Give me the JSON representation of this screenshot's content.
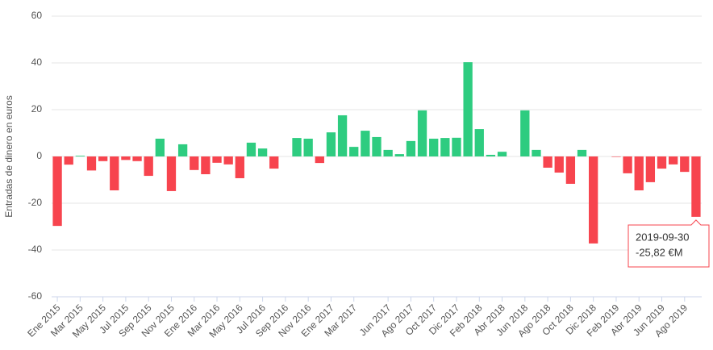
{
  "chart_data": {
    "type": "bar",
    "y_axis_label": "Entradas de dinero en euros",
    "categories": [
      "Ene 2015",
      null,
      "Mar 2015",
      null,
      "May 2015",
      null,
      "Jul 2015",
      null,
      "Sep 2015",
      null,
      "Nov 2015",
      null,
      "Ene 2016",
      null,
      "Mar 2016",
      null,
      "May 2016",
      null,
      "Jul 2016",
      null,
      "Sep 2016",
      null,
      "Nov 2016",
      null,
      "Ene 2017",
      null,
      "Mar 2017",
      null,
      null,
      "Jun 2017",
      null,
      "Ago 2017",
      null,
      "Oct 2017",
      null,
      "Dic 2017",
      null,
      "Feb 2018",
      null,
      "Abr 2018",
      null,
      "Jun 2018",
      null,
      "Ago 2018",
      null,
      "Oct 2018",
      null,
      "Dic 2018",
      null,
      "Feb 2019",
      null,
      "Abr 2019",
      null,
      "Jun 2019",
      null,
      "Ago 2019",
      null
    ],
    "values": [
      -29.7,
      -3.5,
      0.3,
      -6,
      -2,
      -14.5,
      -1.5,
      -2,
      -8.3,
      7.6,
      -14.8,
      5.2,
      -5.8,
      -7.6,
      -2.7,
      -3.4,
      -9.3,
      5.9,
      3.4,
      -5.2,
      0,
      7.9,
      7.6,
      -2.8,
      10.3,
      17.6,
      4.1,
      11,
      8.3,
      2.8,
      1,
      6.6,
      19.7,
      7.6,
      7.9,
      8,
      40.3,
      11.7,
      0.7,
      2,
      0,
      19.7,
      2.8,
      -4.8,
      -6.9,
      -11.7,
      2.8,
      -37.2,
      0,
      -0.2,
      -7.2,
      -14.5,
      -11,
      -5.2,
      -3.4,
      -6.6,
      -25.82
    ],
    "positive_color": "#2ecc80",
    "negative_color": "#f7444e",
    "ylim": [
      -60,
      60
    ],
    "yticks": [
      -60,
      -40,
      -20,
      0,
      20,
      40,
      60
    ],
    "grid": true,
    "tooltip": {
      "index": 56,
      "date": "2019-09-30",
      "label": "-25,82 €M"
    }
  }
}
